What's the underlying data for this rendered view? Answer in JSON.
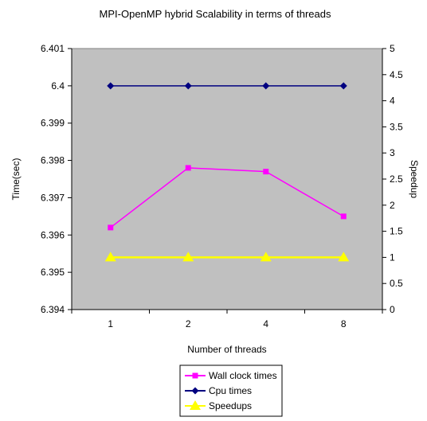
{
  "chart_data": {
    "type": "line",
    "title": "MPI-OpenMP hybrid Scalability in terms of threads",
    "xlabel": "Number of threads",
    "ylabel": "Time(sec)",
    "y2label": "Speedup",
    "categories": [
      "1",
      "2",
      "4",
      "8"
    ],
    "ylim": [
      6.394,
      6.401
    ],
    "y2lim": [
      0,
      5
    ],
    "yticks": [
      "6.394",
      "6.395",
      "6.396",
      "6.397",
      "6.398",
      "6.399",
      "6.4",
      "6.401"
    ],
    "y2ticks": [
      "0",
      "0.5",
      "1",
      "1.5",
      "2",
      "2.5",
      "3",
      "3.5",
      "4",
      "4.5",
      "5"
    ],
    "grid": false,
    "plot_background": "#c0c0c0",
    "legend_position": "bottom",
    "series": [
      {
        "name": "Wall clock times",
        "axis": "left",
        "values": [
          6.3962,
          6.3978,
          6.3977,
          6.3965
        ],
        "color": "#ff00ff",
        "marker": "square"
      },
      {
        "name": "Cpu times",
        "axis": "left",
        "values": [
          6.4,
          6.4,
          6.4,
          6.4
        ],
        "color": "#000080",
        "marker": "diamond"
      },
      {
        "name": "Speedups",
        "axis": "right",
        "values": [
          1,
          1,
          1,
          1
        ],
        "color": "#ffff00",
        "marker": "triangle"
      }
    ]
  }
}
